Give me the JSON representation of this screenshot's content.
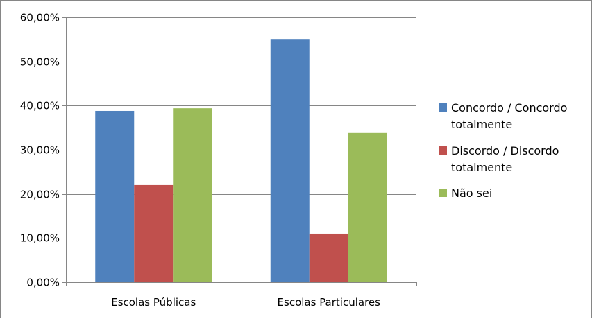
{
  "chart_data": {
    "type": "bar",
    "title": "",
    "xlabel": "",
    "ylabel": "",
    "categories": [
      "Escolas Públicas",
      "Escolas Particulares"
    ],
    "series": [
      {
        "name": "Concordo / Concordo totalmente",
        "name_lines": [
          "Concordo / Concordo",
          "totalmente"
        ],
        "color": "#4F81BD",
        "values": [
          38.8,
          55.1
        ]
      },
      {
        "name": "Discordo / Discordo totalmente",
        "name_lines": [
          "Discordo / Discordo",
          "totalmente"
        ],
        "color": "#C0504D",
        "values": [
          22.0,
          11.0
        ]
      },
      {
        "name": "Não sei",
        "name_lines": [
          "Não sei"
        ],
        "color": "#9BBB59",
        "values": [
          39.4,
          33.8
        ]
      }
    ],
    "ylim": [
      0,
      60
    ],
    "yticks": [
      0,
      10,
      20,
      30,
      40,
      50,
      60
    ],
    "ytick_labels": [
      "0,00%",
      "10,00%",
      "20,00%",
      "30,00%",
      "40,00%",
      "50,00%",
      "60,00%"
    ],
    "grid": true,
    "legend": "right"
  }
}
